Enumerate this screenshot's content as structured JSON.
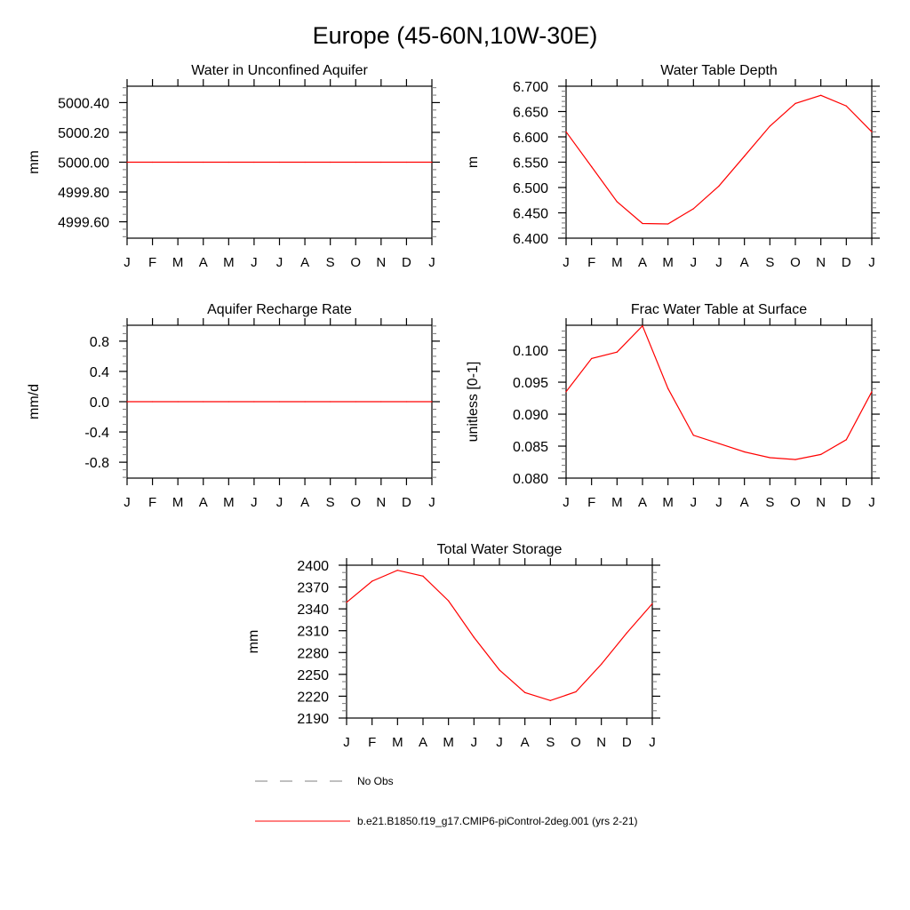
{
  "title": "Europe (45-60N,10W-30E)",
  "line_color": "#ff0000",
  "obs_color": "#808080",
  "legend": {
    "obs_label": "No Obs",
    "model_label": "b.e21.B1850.f19_g17.CMIP6-piControl-2deg.001 (yrs 2-21)"
  },
  "chart_data": [
    {
      "type": "line",
      "title": "Water in Unconfined Aquifer",
      "ylabel": "mm",
      "categories": [
        "J",
        "F",
        "M",
        "A",
        "M",
        "J",
        "J",
        "A",
        "S",
        "O",
        "N",
        "D",
        "J"
      ],
      "values": [
        5000,
        5000,
        5000,
        5000,
        5000,
        5000,
        5000,
        5000,
        5000,
        5000,
        5000,
        5000,
        5000
      ],
      "ylim": [
        4999.49,
        5000.51
      ],
      "yticks": [
        4999.6,
        4999.8,
        5000.0,
        5000.2,
        5000.4
      ],
      "ytick_labels": [
        "4999.60",
        "4999.80",
        "5000.00",
        "5000.20",
        "5000.40"
      ],
      "y_minor_step": 0.05
    },
    {
      "type": "line",
      "title": "Water Table Depth",
      "ylabel": "m",
      "categories": [
        "J",
        "F",
        "M",
        "A",
        "M",
        "J",
        "J",
        "A",
        "S",
        "O",
        "N",
        "D",
        "J"
      ],
      "values": [
        6.61,
        6.541,
        6.472,
        6.429,
        6.428,
        6.458,
        6.503,
        6.562,
        6.621,
        6.666,
        6.682,
        6.661,
        6.61
      ],
      "ylim": [
        6.4,
        6.7
      ],
      "yticks": [
        6.4,
        6.45,
        6.5,
        6.55,
        6.6,
        6.65,
        6.7
      ],
      "ytick_labels": [
        "6.400",
        "6.450",
        "6.500",
        "6.550",
        "6.600",
        "6.650",
        "6.700"
      ],
      "y_minor_step": 0.01
    },
    {
      "type": "line",
      "title": "Aquifer Recharge Rate",
      "ylabel": "mm/d",
      "categories": [
        "J",
        "F",
        "M",
        "A",
        "M",
        "J",
        "J",
        "A",
        "S",
        "O",
        "N",
        "D",
        "J"
      ],
      "values": [
        0,
        0,
        0,
        0,
        0,
        0,
        0,
        0,
        0,
        0,
        0,
        0,
        0
      ],
      "ylim": [
        -1.01,
        1.01
      ],
      "yticks": [
        -0.8,
        -0.4,
        0,
        0.4,
        0.8
      ],
      "ytick_labels": [
        "-0.8",
        "-0.4",
        "0.0",
        "0.4",
        "0.8"
      ],
      "y_minor_step": 0.1
    },
    {
      "type": "line",
      "title": "Frac Water Table at Surface",
      "ylabel": "unitless [0-1]",
      "categories": [
        "J",
        "F",
        "M",
        "A",
        "M",
        "J",
        "J",
        "A",
        "S",
        "O",
        "N",
        "D",
        "J"
      ],
      "values": [
        0.0935,
        0.0987,
        0.0997,
        0.1038,
        0.094,
        0.0867,
        0.0854,
        0.0841,
        0.0832,
        0.0829,
        0.0837,
        0.086,
        0.0935
      ],
      "ylim": [
        0.08,
        0.1039
      ],
      "yticks": [
        0.08,
        0.085,
        0.09,
        0.095,
        0.1
      ],
      "ytick_labels": [
        "0.080",
        "0.085",
        "0.090",
        "0.095",
        "0.100"
      ],
      "y_minor_step": 0.001
    },
    {
      "type": "line",
      "title": "Total Water Storage",
      "ylabel": "mm",
      "categories": [
        "J",
        "F",
        "M",
        "A",
        "M",
        "J",
        "J",
        "A",
        "S",
        "O",
        "N",
        "D",
        "J"
      ],
      "values": [
        2349,
        2378,
        2393,
        2385,
        2351,
        2301,
        2256,
        2225,
        2214,
        2226,
        2264,
        2307,
        2347
      ],
      "ylim": [
        2190,
        2400
      ],
      "yticks": [
        2190,
        2220,
        2250,
        2280,
        2310,
        2340,
        2370,
        2400
      ],
      "ytick_labels": [
        "2190",
        "2220",
        "2250",
        "2280",
        "2310",
        "2340",
        "2370",
        "2400"
      ],
      "y_minor_step": 10
    }
  ]
}
